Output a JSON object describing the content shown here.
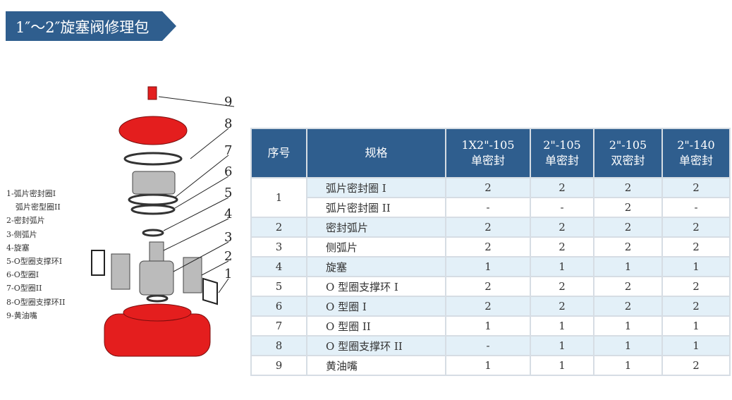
{
  "title": "1″～2″旋塞阀修理包",
  "colors": {
    "header": "#2f5e8e",
    "row_alt": "#e3f0f8",
    "body": "#e41e1e"
  },
  "legend": [
    "1-弧片密封圈I",
    "弧片密型圈II",
    "2-密封弧片",
    "3-侧弧片",
    "4-旋塞",
    "5-O型圈支撑环I",
    "6-O型圈I",
    "7-O型圈II",
    "8-O型圈支撑环II",
    "9-黄油嘴"
  ],
  "callouts": [
    "9",
    "8",
    "7",
    "6",
    "5",
    "4",
    "3",
    "2",
    "1"
  ],
  "table": {
    "headers": [
      {
        "l1": "序号",
        "l2": ""
      },
      {
        "l1": "规格",
        "l2": ""
      },
      {
        "l1": "1X2\"-105",
        "l2": "单密封"
      },
      {
        "l1": "2\"-105",
        "l2": "单密封"
      },
      {
        "l1": "2\"-105",
        "l2": "双密封"
      },
      {
        "l1": "2\"-140",
        "l2": "单密封"
      }
    ],
    "rows": [
      {
        "no": "1",
        "spec": "弧片密封圈 I",
        "v": [
          "2",
          "2",
          "2",
          "2"
        ]
      },
      {
        "no": "",
        "spec": "弧片密封圈 II",
        "v": [
          "-",
          "-",
          "2",
          "-"
        ]
      },
      {
        "no": "2",
        "spec": "密封弧片",
        "v": [
          "2",
          "2",
          "2",
          "2"
        ]
      },
      {
        "no": "3",
        "spec": "侧弧片",
        "v": [
          "2",
          "2",
          "2",
          "2"
        ]
      },
      {
        "no": "4",
        "spec": "旋塞",
        "v": [
          "1",
          "1",
          "1",
          "1"
        ]
      },
      {
        "no": "5",
        "spec": "O 型圈支撑环 I",
        "v": [
          "2",
          "2",
          "2",
          "2"
        ]
      },
      {
        "no": "6",
        "spec": "O 型圈 I",
        "v": [
          "2",
          "2",
          "2",
          "2"
        ]
      },
      {
        "no": "7",
        "spec": "O 型圈 II",
        "v": [
          "1",
          "1",
          "1",
          "1"
        ]
      },
      {
        "no": "8",
        "spec": "O 型圈支撑环 II",
        "v": [
          "-",
          "1",
          "1",
          "1"
        ]
      },
      {
        "no": "9",
        "spec": "黄油嘴",
        "v": [
          "1",
          "1",
          "1",
          "2"
        ]
      }
    ]
  }
}
